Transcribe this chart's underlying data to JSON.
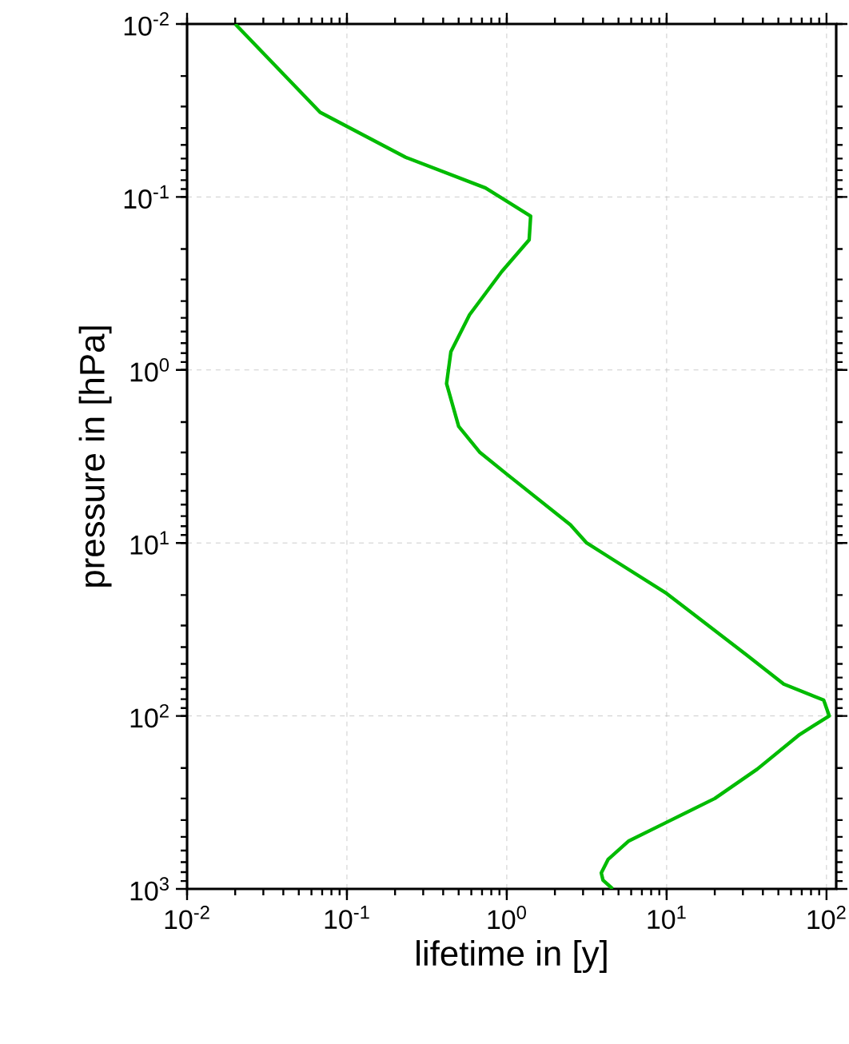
{
  "chart_data": {
    "type": "line",
    "xlabel": "lifetime in [y]",
    "ylabel": "pressure in [hPa]",
    "log": "xy",
    "grid": true,
    "line_style": "solid",
    "marker": "none",
    "xlim": [
      0.01,
      115
    ],
    "ylim": [
      1000,
      0.01
    ],
    "xticks": [
      {
        "value": 0.01,
        "label": "10$^{-2}$"
      },
      {
        "value": 0.1,
        "label": "10$^{-1}$"
      },
      {
        "value": 1,
        "label": "10$^{0}$"
      },
      {
        "value": 10,
        "label": "10$^{1}$"
      },
      {
        "value": 100,
        "label": "10$^{2}$"
      }
    ],
    "yticks": [
      {
        "value": 0.01,
        "label": "10$^{-2}$"
      },
      {
        "value": 0.1,
        "label": "10$^{-1}$"
      },
      {
        "value": 1,
        "label": "10$^{0}$"
      },
      {
        "value": 10,
        "label": "10$^{1}$"
      },
      {
        "value": 100,
        "label": "10$^{2}$"
      },
      {
        "value": 1000,
        "label": "10$^{3}$"
      }
    ],
    "series": [
      {
        "color": "#00bb00",
        "x": [
          0.02,
          0.068,
          0.233,
          0.736,
          1.41,
          1.38,
          0.93,
          0.585,
          0.447,
          0.42,
          0.5,
          0.68,
          1.0,
          2.5,
          3.16,
          10,
          31.6,
          54,
          96,
          104,
          68,
          36.9,
          20,
          10,
          5.8,
          4.3,
          3.9,
          4.0,
          4.6
        ],
        "values": [
          0.01,
          0.0324,
          0.059,
          0.0887,
          0.129,
          0.177,
          0.27,
          0.48,
          0.785,
          1.2,
          2.12,
          3.0,
          4.0,
          7.85,
          10,
          19.6,
          44.4,
          65.4,
          81,
          100,
          128,
          203,
          300,
          412,
          528,
          676,
          809,
          891,
          1000
        ]
      }
    ]
  }
}
